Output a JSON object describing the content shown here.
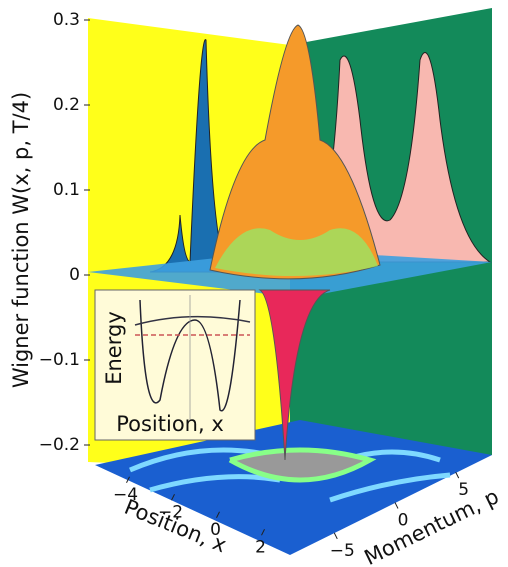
{
  "chart_data": {
    "type": "surface3d",
    "zlabel": "Wigner function W(x, p, T/4)",
    "xlabel": "Position, x",
    "ylabel": "Momentum, p",
    "zlim": [
      -0.2,
      0.3
    ],
    "zticks": [
      {
        "value": -0.2,
        "label": "−0.2"
      },
      {
        "value": -0.1,
        "label": "−0.1"
      },
      0,
      0.1,
      0.2,
      0.3
    ],
    "xlim": [
      -5,
      3
    ],
    "xticks": [
      {
        "value": -4,
        "label": "−4"
      },
      {
        "value": -2,
        "label": "−2"
      },
      0,
      2
    ],
    "ylim": [
      -7,
      7
    ],
    "yticks": [
      {
        "value": -5,
        "label": "−5"
      },
      0,
      5
    ],
    "inset": {
      "ylabel": "Energy",
      "xlabel": "Position, x"
    }
  }
}
